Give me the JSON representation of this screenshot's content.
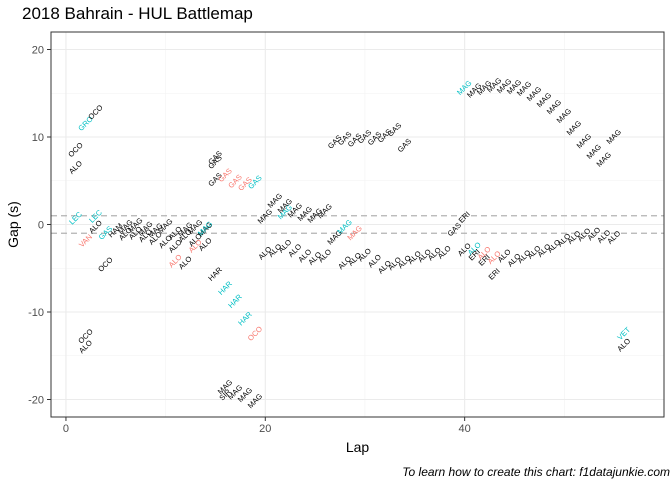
{
  "chart_data": {
    "type": "scatter",
    "title": "2018 Bahrain - HUL Battlemap",
    "xlabel": "Lap",
    "ylabel": "Gap (s)",
    "caption": "To learn how to create this chart: f1datajunkie.com",
    "xlim": [
      -1.5,
      60
    ],
    "ylim": [
      -22,
      22
    ],
    "x_ticks": [
      0,
      20,
      40
    ],
    "y_ticks": [
      -20,
      -10,
      0,
      10,
      20
    ],
    "grid": true,
    "legend": "none",
    "reference_lines": [
      1,
      -1
    ],
    "colors": {
      "behind": "#000000",
      "leader": "#00bfc4",
      "ahead": "#f8766d"
    },
    "points": [
      {
        "lap": 1,
        "gap": 8.5,
        "label": "OCO",
        "kind": "behind"
      },
      {
        "lap": 1,
        "gap": 6.5,
        "label": "ALO",
        "kind": "behind"
      },
      {
        "lap": 1,
        "gap": 0.7,
        "label": "LEC",
        "kind": "leader"
      },
      {
        "lap": 2,
        "gap": 11.5,
        "label": "GRO",
        "kind": "leader"
      },
      {
        "lap": 3,
        "gap": 12.8,
        "label": "OCO",
        "kind": "behind"
      },
      {
        "lap": 2,
        "gap": -1.9,
        "label": "VAN",
        "kind": "ahead"
      },
      {
        "lap": 3,
        "gap": 0.9,
        "label": "LEC",
        "kind": "leader"
      },
      {
        "lap": 3,
        "gap": -0.3,
        "label": "ALO",
        "kind": "behind"
      },
      {
        "lap": 4,
        "gap": -1.0,
        "label": "GAS",
        "kind": "leader"
      },
      {
        "lap": 4,
        "gap": -4.6,
        "label": "OCO",
        "kind": "behind"
      },
      {
        "lap": 5,
        "gap": -0.7,
        "label": "HAM",
        "kind": "behind"
      },
      {
        "lap": 6,
        "gap": -1.1,
        "label": "ALO",
        "kind": "behind"
      },
      {
        "lap": 6,
        "gap": -0.3,
        "label": "MAG",
        "kind": "behind"
      },
      {
        "lap": 7,
        "gap": -1.0,
        "label": "ALO",
        "kind": "behind"
      },
      {
        "lap": 7,
        "gap": -0.1,
        "label": "MAG",
        "kind": "behind"
      },
      {
        "lap": 8,
        "gap": -1.3,
        "label": "ALO",
        "kind": "behind"
      },
      {
        "lap": 8,
        "gap": -0.5,
        "label": "MAG",
        "kind": "behind"
      },
      {
        "lap": 9,
        "gap": -1.6,
        "label": "ALO",
        "kind": "behind"
      },
      {
        "lap": 9,
        "gap": -0.7,
        "label": "MAG",
        "kind": "behind"
      },
      {
        "lap": 10,
        "gap": -2.0,
        "label": "ALO",
        "kind": "behind"
      },
      {
        "lap": 10,
        "gap": -0.2,
        "label": "MAG",
        "kind": "behind"
      },
      {
        "lap": 11,
        "gap": -2.5,
        "label": "ALO",
        "kind": "behind"
      },
      {
        "lap": 11,
        "gap": -1.0,
        "label": "ALO",
        "kind": "behind"
      },
      {
        "lap": 11,
        "gap": -4.2,
        "label": "ALO",
        "kind": "ahead"
      },
      {
        "lap": 12,
        "gap": -0.6,
        "label": "MAG",
        "kind": "behind"
      },
      {
        "lap": 12,
        "gap": -4.4,
        "label": "ALO",
        "kind": "behind"
      },
      {
        "lap": 12,
        "gap": -1.3,
        "label": "ALO",
        "kind": "behind"
      },
      {
        "lap": 13,
        "gap": -0.3,
        "label": "MAG",
        "kind": "behind"
      },
      {
        "lap": 13,
        "gap": -1.8,
        "label": "ALO",
        "kind": "behind"
      },
      {
        "lap": 14,
        "gap": -0.6,
        "label": "MAG",
        "kind": "behind"
      },
      {
        "lap": 13,
        "gap": -2.5,
        "label": "ALO",
        "kind": "ahead"
      },
      {
        "lap": 14,
        "gap": -0.5,
        "label": "MAG",
        "kind": "leader"
      },
      {
        "lap": 14,
        "gap": -2.3,
        "label": "ALO",
        "kind": "behind"
      },
      {
        "lap": 15,
        "gap": -5.7,
        "label": "HAR",
        "kind": "behind"
      },
      {
        "lap": 15,
        "gap": 7.1,
        "label": "GAS",
        "kind": "behind"
      },
      {
        "lap": 15,
        "gap": 7.6,
        "label": "GAS",
        "kind": "behind"
      },
      {
        "lap": 15,
        "gap": 5.1,
        "label": "GAS",
        "kind": "behind"
      },
      {
        "lap": 16,
        "gap": 5.6,
        "label": "GAS",
        "kind": "ahead"
      },
      {
        "lap": 17,
        "gap": 4.9,
        "label": "GAS",
        "kind": "ahead"
      },
      {
        "lap": 18,
        "gap": 4.6,
        "label": "GAS",
        "kind": "ahead"
      },
      {
        "lap": 19,
        "gap": 4.8,
        "label": "GAS",
        "kind": "leader"
      },
      {
        "lap": 16,
        "gap": -7.3,
        "label": "HAR",
        "kind": "leader"
      },
      {
        "lap": 17,
        "gap": -8.8,
        "label": "HAR",
        "kind": "leader"
      },
      {
        "lap": 18,
        "gap": -10.8,
        "label": "HAR",
        "kind": "leader"
      },
      {
        "lap": 19,
        "gap": -12.5,
        "label": "OCO",
        "kind": "ahead"
      },
      {
        "lap": 16,
        "gap": -18.6,
        "label": "MAG",
        "kind": "behind"
      },
      {
        "lap": 16,
        "gap": -19.5,
        "label": "SIR",
        "kind": "behind"
      },
      {
        "lap": 17,
        "gap": -19.2,
        "label": "MAG",
        "kind": "behind"
      },
      {
        "lap": 18,
        "gap": -19.5,
        "label": "MAG",
        "kind": "behind"
      },
      {
        "lap": 19,
        "gap": -20.2,
        "label": "MAG",
        "kind": "behind"
      },
      {
        "lap": 20,
        "gap": 0.9,
        "label": "MAG",
        "kind": "behind"
      },
      {
        "lap": 20,
        "gap": -3.3,
        "label": "ALO",
        "kind": "behind"
      },
      {
        "lap": 21,
        "gap": 2.7,
        "label": "MAG",
        "kind": "behind"
      },
      {
        "lap": 21,
        "gap": -3.0,
        "label": "ALO",
        "kind": "behind"
      },
      {
        "lap": 22,
        "gap": 1.4,
        "label": "MAG",
        "kind": "leader"
      },
      {
        "lap": 22,
        "gap": 2.1,
        "label": "MAG",
        "kind": "behind"
      },
      {
        "lap": 22,
        "gap": -2.5,
        "label": "ALO",
        "kind": "behind"
      },
      {
        "lap": 23,
        "gap": 1.6,
        "label": "MAG",
        "kind": "behind"
      },
      {
        "lap": 23,
        "gap": -3.0,
        "label": "ALO",
        "kind": "behind"
      },
      {
        "lap": 24,
        "gap": 1.2,
        "label": "MAG",
        "kind": "behind"
      },
      {
        "lap": 24,
        "gap": -3.6,
        "label": "ALO",
        "kind": "behind"
      },
      {
        "lap": 25,
        "gap": 1.0,
        "label": "MAG",
        "kind": "behind"
      },
      {
        "lap": 25,
        "gap": -3.9,
        "label": "ALO",
        "kind": "behind"
      },
      {
        "lap": 26,
        "gap": 1.5,
        "label": "MAG",
        "kind": "behind"
      },
      {
        "lap": 26,
        "gap": -3.6,
        "label": "ALO",
        "kind": "behind"
      },
      {
        "lap": 27,
        "gap": 9.4,
        "label": "GAS",
        "kind": "behind"
      },
      {
        "lap": 27,
        "gap": -1.5,
        "label": "MAG",
        "kind": "behind"
      },
      {
        "lap": 28,
        "gap": 9.8,
        "label": "GAS",
        "kind": "behind"
      },
      {
        "lap": 28,
        "gap": -0.3,
        "label": "MAG",
        "kind": "leader"
      },
      {
        "lap": 28,
        "gap": -4.4,
        "label": "ALO",
        "kind": "behind"
      },
      {
        "lap": 29,
        "gap": 9.6,
        "label": "GAS",
        "kind": "behind"
      },
      {
        "lap": 29,
        "gap": -1.0,
        "label": "MAG",
        "kind": "ahead"
      },
      {
        "lap": 29,
        "gap": -4.0,
        "label": "ALO",
        "kind": "behind"
      },
      {
        "lap": 30,
        "gap": 10.0,
        "label": "GAS",
        "kind": "behind"
      },
      {
        "lap": 30,
        "gap": -3.5,
        "label": "ALO",
        "kind": "behind"
      },
      {
        "lap": 31,
        "gap": 9.8,
        "label": "GAS",
        "kind": "behind"
      },
      {
        "lap": 31,
        "gap": -4.2,
        "label": "ALO",
        "kind": "behind"
      },
      {
        "lap": 32,
        "gap": 10.1,
        "label": "GAS",
        "kind": "behind"
      },
      {
        "lap": 32,
        "gap": -4.9,
        "label": "ALO",
        "kind": "behind"
      },
      {
        "lap": 33,
        "gap": 10.8,
        "label": "GAS",
        "kind": "behind"
      },
      {
        "lap": 33,
        "gap": -4.5,
        "label": "ALO",
        "kind": "behind"
      },
      {
        "lap": 34,
        "gap": 9.0,
        "label": "GAS",
        "kind": "behind"
      },
      {
        "lap": 34,
        "gap": -4.3,
        "label": "ALO",
        "kind": "behind"
      },
      {
        "lap": 35,
        "gap": -3.8,
        "label": "ALO",
        "kind": "behind"
      },
      {
        "lap": 36,
        "gap": -3.6,
        "label": "ALO",
        "kind": "behind"
      },
      {
        "lap": 37,
        "gap": -3.4,
        "label": "ALO",
        "kind": "behind"
      },
      {
        "lap": 38,
        "gap": -3.2,
        "label": "ALO",
        "kind": "behind"
      },
      {
        "lap": 39,
        "gap": -0.6,
        "label": "GAS",
        "kind": "behind"
      },
      {
        "lap": 40,
        "gap": 0.8,
        "label": "ERI",
        "kind": "behind"
      },
      {
        "lap": 40,
        "gap": -2.9,
        "label": "ALO",
        "kind": "behind"
      },
      {
        "lap": 40,
        "gap": 15.6,
        "label": "MAG",
        "kind": "leader"
      },
      {
        "lap": 41,
        "gap": 15.3,
        "label": "MAG",
        "kind": "behind"
      },
      {
        "lap": 41,
        "gap": -2.8,
        "label": "ALO",
        "kind": "leader"
      },
      {
        "lap": 41,
        "gap": -3.5,
        "label": "ERI",
        "kind": "behind"
      },
      {
        "lap": 42,
        "gap": 15.6,
        "label": "MAG",
        "kind": "behind"
      },
      {
        "lap": 42,
        "gap": -3.3,
        "label": "ALO",
        "kind": "ahead"
      },
      {
        "lap": 42,
        "gap": -4.1,
        "label": "ERI",
        "kind": "behind"
      },
      {
        "lap": 43,
        "gap": 15.9,
        "label": "MAG",
        "kind": "behind"
      },
      {
        "lap": 43,
        "gap": -3.8,
        "label": "ALO",
        "kind": "ahead"
      },
      {
        "lap": 43,
        "gap": -5.7,
        "label": "ERI",
        "kind": "behind"
      },
      {
        "lap": 44,
        "gap": 15.8,
        "label": "MAG",
        "kind": "behind"
      },
      {
        "lap": 44,
        "gap": -3.6,
        "label": "ALO",
        "kind": "behind"
      },
      {
        "lap": 45,
        "gap": 15.7,
        "label": "MAG",
        "kind": "behind"
      },
      {
        "lap": 45,
        "gap": -4.1,
        "label": "ALO",
        "kind": "behind"
      },
      {
        "lap": 46,
        "gap": 15.5,
        "label": "MAG",
        "kind": "behind"
      },
      {
        "lap": 46,
        "gap": -3.7,
        "label": "ALO",
        "kind": "behind"
      },
      {
        "lap": 47,
        "gap": 14.9,
        "label": "MAG",
        "kind": "behind"
      },
      {
        "lap": 47,
        "gap": -3.2,
        "label": "ALO",
        "kind": "behind"
      },
      {
        "lap": 48,
        "gap": 14.2,
        "label": "MAG",
        "kind": "behind"
      },
      {
        "lap": 48,
        "gap": -3.0,
        "label": "ALO",
        "kind": "behind"
      },
      {
        "lap": 49,
        "gap": 13.4,
        "label": "MAG",
        "kind": "behind"
      },
      {
        "lap": 49,
        "gap": -2.5,
        "label": "ALO",
        "kind": "behind"
      },
      {
        "lap": 50,
        "gap": 12.4,
        "label": "MAG",
        "kind": "behind"
      },
      {
        "lap": 50,
        "gap": -1.8,
        "label": "ALO",
        "kind": "behind"
      },
      {
        "lap": 51,
        "gap": 11.0,
        "label": "MAG",
        "kind": "behind"
      },
      {
        "lap": 51,
        "gap": -1.5,
        "label": "ALO",
        "kind": "behind"
      },
      {
        "lap": 52,
        "gap": 9.5,
        "label": "MAG",
        "kind": "behind"
      },
      {
        "lap": 52,
        "gap": -1.2,
        "label": "ALO",
        "kind": "behind"
      },
      {
        "lap": 53,
        "gap": 8.3,
        "label": "MAG",
        "kind": "behind"
      },
      {
        "lap": 53,
        "gap": -1.1,
        "label": "ALO",
        "kind": "behind"
      },
      {
        "lap": 54,
        "gap": 7.4,
        "label": "MAG",
        "kind": "behind"
      },
      {
        "lap": 54,
        "gap": -1.4,
        "label": "ALO",
        "kind": "behind"
      },
      {
        "lap": 55,
        "gap": 10.0,
        "label": "MAG",
        "kind": "behind"
      },
      {
        "lap": 55,
        "gap": -1.5,
        "label": "ALO",
        "kind": "behind"
      },
      {
        "lap": 56,
        "gap": -12.5,
        "label": "VET",
        "kind": "leader"
      },
      {
        "lap": 56,
        "gap": -13.8,
        "label": "ALO",
        "kind": "behind"
      },
      {
        "lap": 2,
        "gap": -12.8,
        "label": "OCO",
        "kind": "behind"
      },
      {
        "lap": 2,
        "gap": -14.0,
        "label": "ALO",
        "kind": "behind"
      }
    ]
  }
}
